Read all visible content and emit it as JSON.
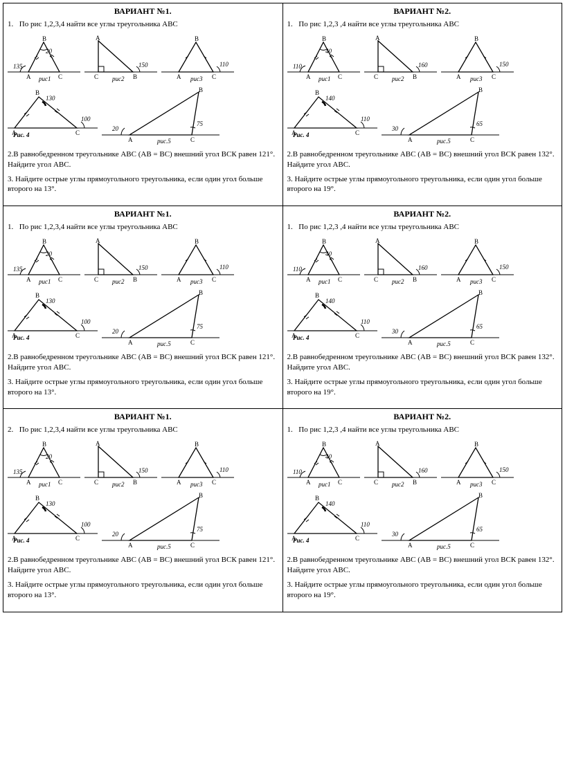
{
  "v1": {
    "title": "ВАРИАНТ №1.",
    "task1_num": "1.",
    "task1": "По рис 1,2,3,4 найти все углы треугольника АВС",
    "task2_num": "2.",
    "task2": "В равнобедренном треугольнике АВС (АВ = ВС) внешний угол ВСК равен 121°. Найдите угол АВС.",
    "task3_num": "3.",
    "task3": "Найдите острые углы прямоугольного треугольника, если один угол больше второго на 13°.",
    "fig": {
      "a1": "135",
      "a2": "20",
      "a3": "150",
      "a4": "110",
      "a5": "130",
      "a6": "100",
      "a7": "20",
      "a8": "75",
      "l1": "рис1",
      "l2": "рис2",
      "l3": "рис3",
      "l4": "Рис. 4",
      "l5": "рис.5",
      "A": "A",
      "B": "B",
      "C": "C"
    }
  },
  "v2": {
    "title": "ВАРИАНТ №2.",
    "task1_num": "1.",
    "task1": "По рис 1,2,3 ,4 найти все углы треугольника АВС",
    "task2_num": "2.",
    "task2": "В равнобедренном треугольнике АВС (АВ = ВС) внешний угол ВСК равен 132°. Найдите угол АВС.",
    "task3_num": "3.",
    "task3": "Найдите острые углы прямоугольного треугольника, если один угол больше второго на 19°.",
    "fig": {
      "a1": "110",
      "a2": "40",
      "a3": "160",
      "a4": "150",
      "a5": "140",
      "a6": "110",
      "a7": "30",
      "a8": "65",
      "l1": "рис1",
      "l2": "рис2",
      "l3": "рис3",
      "l4": "Рис. 4",
      "l5": "рис.5",
      "A": "A",
      "B": "B",
      "C": "C"
    }
  },
  "v1b_task1_num": "2."
}
